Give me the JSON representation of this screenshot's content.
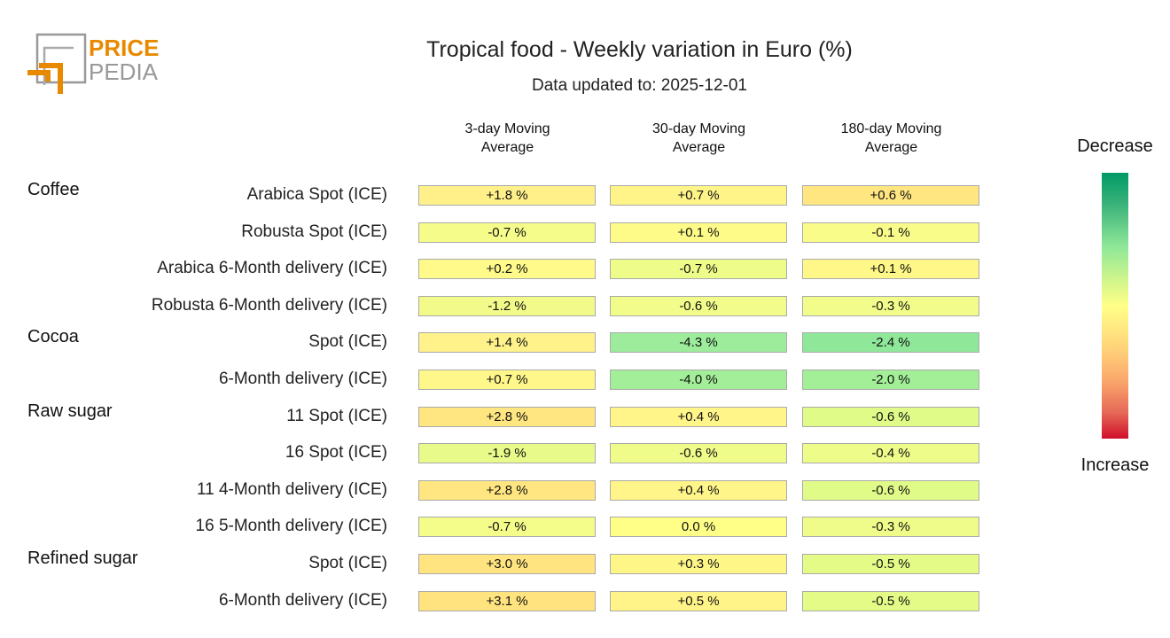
{
  "title": "Tropical food - Weekly variation in Euro (%)",
  "subtitle": "Data updated to: 2025-12-01",
  "logo": {
    "line1": "PRICE",
    "line2": "PEDIA",
    "brand_color": "#e88a00",
    "gray": "#999999"
  },
  "colorbar": {
    "top_label": "Decrease",
    "bottom_label": "Increase",
    "colors": [
      "#009966",
      "#90e898",
      "#ffff88",
      "#fba86c",
      "#d0102a"
    ]
  },
  "chart_data": {
    "type": "heatmap",
    "title": "Tropical food - Weekly variation in Euro (%)",
    "columns": [
      "3-day Moving Average",
      "30-day Moving Average",
      "180-day Moving Average"
    ],
    "column_lines": [
      [
        "3-day Moving",
        "Average"
      ],
      [
        "30-day Moving",
        "Average"
      ],
      [
        "180-day Moving",
        "Average"
      ]
    ],
    "groups": [
      "Coffee",
      "Cocoa",
      "Raw sugar",
      "Refined sugar"
    ],
    "rows": [
      {
        "group": "Coffee",
        "label": "Arabica Spot (ICE)",
        "values": [
          "+1.8 %",
          "+0.7 %",
          "+0.6 %"
        ],
        "colors": [
          "#fff08a",
          "#fff488",
          "#ffe680"
        ]
      },
      {
        "group": "Coffee",
        "label": "Robusta Spot (ICE)",
        "values": [
          "-0.7 %",
          "+0.1 %",
          "-0.1 %"
        ],
        "colors": [
          "#f6fc8a",
          "#fffb88",
          "#fafc8a"
        ]
      },
      {
        "group": "Coffee",
        "label": "Arabica 6-Month delivery (ICE)",
        "values": [
          "+0.2 %",
          "-0.7 %",
          "+0.1 %"
        ],
        "colors": [
          "#fffa8a",
          "#eefc8a",
          "#fff788"
        ]
      },
      {
        "group": "Coffee",
        "label": "Robusta 6-Month delivery (ICE)",
        "values": [
          "-1.2 %",
          "-0.6 %",
          "-0.3 %"
        ],
        "colors": [
          "#f2fb8a",
          "#f2fc8a",
          "#f2fc8a"
        ]
      },
      {
        "group": "Cocoa",
        "label": "Spot (ICE)",
        "values": [
          "+1.4 %",
          "-4.3 %",
          "-2.4 %"
        ],
        "colors": [
          "#fff28a",
          "#9cec9c",
          "#8fe89a"
        ]
      },
      {
        "group": "Cocoa",
        "label": "6-Month delivery (ICE)",
        "values": [
          "+0.7 %",
          "-4.0 %",
          "-2.0 %"
        ],
        "colors": [
          "#fff78a",
          "#a3ee98",
          "#a3ef98"
        ]
      },
      {
        "group": "Raw sugar",
        "label": "11 Spot (ICE)",
        "values": [
          "+2.8 %",
          "+0.4 %",
          "-0.6 %"
        ],
        "colors": [
          "#ffe680",
          "#fff588",
          "#e0fb88"
        ]
      },
      {
        "group": "Raw sugar",
        "label": "16 Spot (ICE)",
        "values": [
          "-1.9 %",
          "-0.6 %",
          "-0.4 %"
        ],
        "colors": [
          "#e8fb8a",
          "#f0fc8a",
          "#eefc8a"
        ]
      },
      {
        "group": "Raw sugar",
        "label": "11 4-Month delivery (ICE)",
        "values": [
          "+2.8 %",
          "+0.4 %",
          "-0.6 %"
        ],
        "colors": [
          "#ffe680",
          "#fff588",
          "#e0fb88"
        ]
      },
      {
        "group": "Raw sugar",
        "label": "16 5-Month delivery (ICE)",
        "values": [
          "-0.7 %",
          "0.0 %",
          "-0.3 %"
        ],
        "colors": [
          "#f4fc8a",
          "#ffff88",
          "#effc8a"
        ]
      },
      {
        "group": "Refined sugar",
        "label": "Spot (ICE)",
        "values": [
          "+3.0 %",
          "+0.3 %",
          "-0.5 %"
        ],
        "colors": [
          "#ffe47f",
          "#fff688",
          "#e4fb88"
        ]
      },
      {
        "group": "Refined sugar",
        "label": "6-Month delivery (ICE)",
        "values": [
          "+3.1 %",
          "+0.5 %",
          "-0.5 %"
        ],
        "colors": [
          "#ffe37f",
          "#fff488",
          "#e4fb88"
        ]
      }
    ]
  }
}
